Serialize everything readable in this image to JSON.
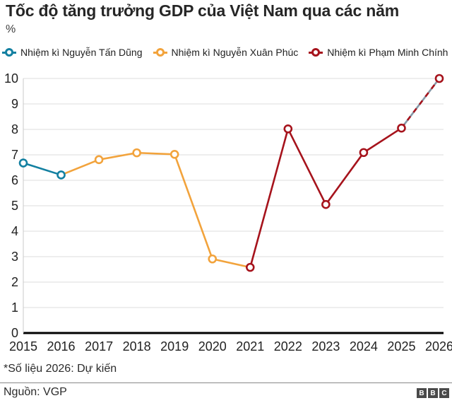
{
  "header": {
    "title": "Tốc độ tăng trưởng GDP của Việt Nam qua các năm",
    "unit_label": "%"
  },
  "legend": {
    "items": [
      {
        "label": "Nhiệm kì Nguyễn Tấn Dũng",
        "color": "#1380A1"
      },
      {
        "label": "Nhiệm kì Nguyễn Xuân Phúc",
        "color": "#F2A33C"
      },
      {
        "label": "Nhiệm kì Phạm Minh Chính",
        "color": "#A6131C"
      }
    ]
  },
  "chart_data": {
    "type": "line",
    "title": "Tốc độ tăng trưởng GDP của Việt Nam qua các năm",
    "ylabel": "%",
    "x_labels": [
      "2015",
      "2016",
      "2017",
      "2018",
      "2019",
      "2020",
      "2021",
      "2022",
      "2023",
      "2024",
      "2025",
      "2026"
    ],
    "values": [
      6.68,
      6.21,
      6.81,
      7.08,
      7.02,
      2.91,
      2.58,
      8.02,
      5.05,
      7.09,
      8.05,
      10.0
    ],
    "marker_colors_by_point": [
      "teal",
      "teal",
      "amber",
      "amber",
      "amber",
      "amber",
      "red",
      "red",
      "red",
      "red",
      "red",
      "red"
    ],
    "segments": [
      {
        "from": 0,
        "to": 1,
        "series": "Nhiệm kì Nguyễn Tấn Dũng",
        "color_key": "teal",
        "style": "solid"
      },
      {
        "from": 1,
        "to": 6,
        "series": "Nhiệm kì Nguyễn Xuân Phúc",
        "color_key": "amber",
        "style": "solid"
      },
      {
        "from": 6,
        "to": 10,
        "series": "Nhiệm kì Phạm Minh Chính",
        "color_key": "red",
        "style": "solid"
      },
      {
        "from": 10,
        "to": 11,
        "series": "Nhiệm kì Phạm Minh Chính",
        "color_key": "red",
        "style": "dashed",
        "note": "Dự kiến"
      }
    ],
    "colors": {
      "teal": "#1380A1",
      "amber": "#F2A33C",
      "red": "#A6131C",
      "projection_gray": "#8599A8",
      "gridline": "#DDDDDD",
      "axis_line": "#C9C9C9",
      "baseline": "#000000"
    },
    "ylim": [
      0,
      10
    ],
    "y_ticks": [
      0,
      1,
      2,
      3,
      4,
      5,
      6,
      7,
      8,
      9,
      10
    ],
    "grid": true,
    "legend_position": "top"
  },
  "footer": {
    "footnote": "*Số liệu 2026: Dự kiến",
    "source": "Nguồn: VGP",
    "logo_letters": [
      "B",
      "B",
      "C"
    ]
  }
}
